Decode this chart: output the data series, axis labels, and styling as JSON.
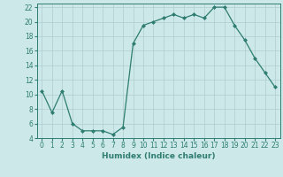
{
  "x": [
    0,
    1,
    2,
    3,
    4,
    5,
    6,
    7,
    8,
    9,
    10,
    11,
    12,
    13,
    14,
    15,
    16,
    17,
    18,
    19,
    20,
    21,
    22,
    23
  ],
  "y": [
    10.5,
    7.5,
    10.5,
    6,
    5,
    5,
    5,
    4.5,
    5.5,
    17,
    19.5,
    20,
    20.5,
    21,
    20.5,
    21,
    20.5,
    22,
    22,
    19.5,
    17.5,
    15,
    13,
    11
  ],
  "line_color": "#2e7d70",
  "marker": "D",
  "marker_size": 2,
  "bg_color": "#cce8e8",
  "grid_color": "#b0cccc",
  "xlabel": "Humidex (Indice chaleur)",
  "xlim": [
    -0.5,
    23.5
  ],
  "ylim": [
    4,
    22.5
  ],
  "yticks": [
    4,
    6,
    8,
    10,
    12,
    14,
    16,
    18,
    20,
    22
  ],
  "xticks": [
    0,
    1,
    2,
    3,
    4,
    5,
    6,
    7,
    8,
    9,
    10,
    11,
    12,
    13,
    14,
    15,
    16,
    17,
    18,
    19,
    20,
    21,
    22,
    23
  ],
  "label_fontsize": 6.5,
  "tick_fontsize": 5.5
}
